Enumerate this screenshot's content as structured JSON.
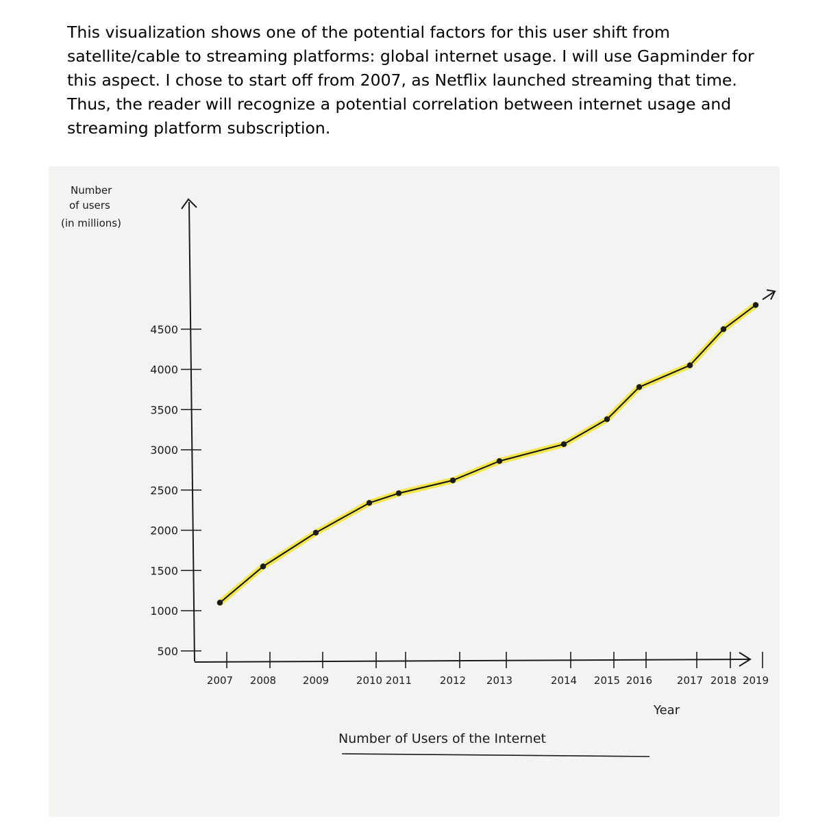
{
  "intro_text": "This visualization shows one of the potential factors for this user shift from satellite/cable to streaming platforms: global internet usage. I will use Gapminder for this aspect. I chose to start off from 2007, as Netflix launched streaming that time. Thus, the reader will recognize a potential correlation between internet usage and streaming platform subscription.",
  "colors": {
    "line": "#111111",
    "highlight": "#f2e43a",
    "paper": "#f3f3f1",
    "ink": "#1a1a1a"
  },
  "chart_data": {
    "type": "line",
    "title": "Number of Users of the Internet",
    "xlabel": "Year",
    "ylabel_lines": [
      "Number",
      "of users",
      "(in millions)"
    ],
    "y_tick_labels": [
      "4500",
      "4000",
      "3500",
      "3000",
      "2500",
      "2000",
      "1500",
      "1000",
      "500"
    ],
    "y_ticks": [
      4500,
      4000,
      3500,
      3000,
      2500,
      2000,
      1500,
      1000,
      500
    ],
    "x_tick_labels": [
      "2007",
      "2008",
      "2009",
      "2010",
      "2011",
      "2012",
      "2013",
      "2014",
      "2015",
      "2016",
      "2017",
      "2018",
      "2019"
    ],
    "x": [
      2007,
      2008,
      2009,
      2010,
      2011,
      2012,
      2013,
      2014,
      2015,
      2016,
      2017,
      2018,
      2019
    ],
    "series": [
      {
        "values": [
          1100,
          1550,
          1970,
          2340,
          2460,
          2620,
          2860,
          3070,
          3380,
          3780,
          4050,
          4500,
          4800
        ]
      }
    ],
    "grid": false,
    "legend": "none"
  }
}
